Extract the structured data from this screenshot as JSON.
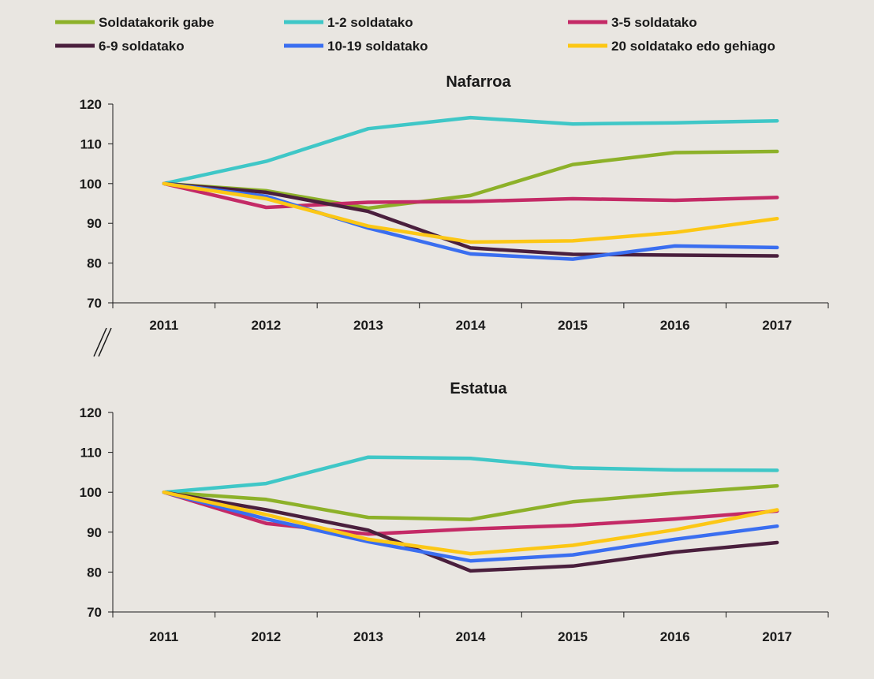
{
  "chart_data": {
    "type": "line",
    "legend": {
      "placement": "top",
      "entries": [
        {
          "name": "Soldatakorik gabe",
          "color": "#8db129"
        },
        {
          "name": "1-2 soldatako",
          "color": "#3fc7c7"
        },
        {
          "name": "3-5 soldatako",
          "color": "#c42a66"
        },
        {
          "name": "6-9 soldatako",
          "color": "#4a1f3d"
        },
        {
          "name": "10-19 soldatako",
          "color": "#3a6ef0"
        },
        {
          "name": "20 soldatako edo gehiago",
          "color": "#fcc715"
        }
      ]
    },
    "panels": [
      {
        "title": "Nafarroa",
        "categories": [
          "2011",
          "2012",
          "2013",
          "2014",
          "2015",
          "2016",
          "2017"
        ],
        "ylim": [
          70,
          120
        ],
        "yticks": [
          "70",
          "80",
          "90",
          "100",
          "110",
          "120"
        ],
        "series": [
          {
            "name": "Soldatakorik gabe",
            "values": [
              100,
              98.2,
              93.8,
              97.0,
              104.8,
              107.8,
              108.1
            ]
          },
          {
            "name": "1-2 soldatako",
            "values": [
              100,
              105.6,
              113.8,
              116.6,
              115.0,
              115.3,
              115.8
            ]
          },
          {
            "name": "3-5 soldatako",
            "values": [
              100,
              94.0,
              95.3,
              95.5,
              96.2,
              95.8,
              96.5
            ]
          },
          {
            "name": "6-9 soldatako",
            "values": [
              100,
              97.8,
              93.0,
              83.8,
              82.2,
              82.0,
              81.8
            ]
          },
          {
            "name": "10-19 soldatako",
            "values": [
              100,
              96.8,
              88.8,
              82.3,
              81.0,
              84.3,
              83.9
            ]
          },
          {
            "name": "20 soldatako edo gehiago",
            "values": [
              100,
              96.2,
              89.3,
              85.3,
              85.6,
              87.7,
              91.2
            ]
          }
        ]
      },
      {
        "title": "Estatua",
        "categories": [
          "2011",
          "2012",
          "2013",
          "2014",
          "2015",
          "2016",
          "2017"
        ],
        "ylim": [
          70,
          120
        ],
        "yticks": [
          "70",
          "80",
          "90",
          "100",
          "110",
          "120"
        ],
        "series": [
          {
            "name": "Soldatakorik gabe",
            "values": [
              100,
              98.2,
              93.7,
              93.2,
              97.6,
              99.8,
              101.6
            ]
          },
          {
            "name": "1-2 soldatako",
            "values": [
              100,
              102.2,
              108.8,
              108.5,
              106.1,
              105.6,
              105.5
            ]
          },
          {
            "name": "3-5 soldatako",
            "values": [
              100,
              92.2,
              89.5,
              90.8,
              91.7,
              93.3,
              95.3
            ]
          },
          {
            "name": "6-9 soldatako",
            "values": [
              100,
              95.6,
              90.5,
              80.3,
              81.5,
              85.0,
              87.4
            ]
          },
          {
            "name": "10-19 soldatako",
            "values": [
              100,
              93.3,
              87.6,
              82.8,
              84.3,
              88.2,
              91.5
            ]
          },
          {
            "name": "20 soldatako edo gehiago",
            "values": [
              100,
              94.4,
              88.2,
              84.6,
              86.7,
              90.6,
              95.6
            ]
          }
        ]
      }
    ]
  }
}
